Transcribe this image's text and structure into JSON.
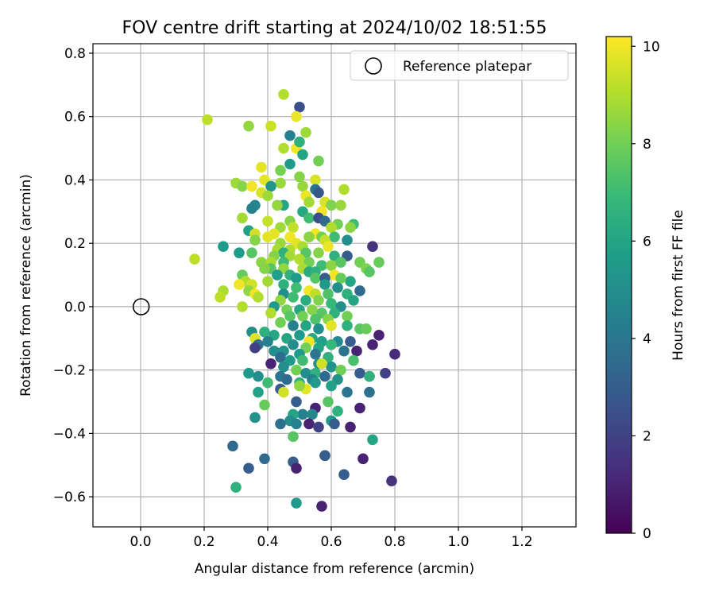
{
  "chart_data": {
    "type": "scatter",
    "title": "FOV centre drift starting at 2024/10/02 18:51:55",
    "xlabel": "Angular distance from reference (arcmin)",
    "ylabel": "Rotation from reference (arcmin)",
    "xlim": [
      -0.15,
      1.37
    ],
    "ylim": [
      -0.695,
      0.83
    ],
    "xticks": [
      0.0,
      0.2,
      0.4,
      0.6,
      0.8,
      1.0,
      1.2
    ],
    "xtick_labels": [
      "0.0",
      "0.2",
      "0.4",
      "0.6",
      "0.8",
      "1.0",
      "1.2"
    ],
    "yticks": [
      -0.6,
      -0.4,
      -0.2,
      0.0,
      0.2,
      0.4,
      0.6,
      0.8
    ],
    "ytick_labels": [
      "−0.6",
      "−0.4",
      "−0.2",
      "0.0",
      "0.2",
      "0.4",
      "0.6",
      "0.8"
    ],
    "grid": true,
    "legend": {
      "position": "top-right",
      "entries": [
        "Reference platepar"
      ]
    },
    "reference_point": {
      "x": 0.0,
      "y": 0.0
    },
    "colorbar": {
      "label": "Hours from first FF file",
      "min": 0,
      "max": 10.2,
      "ticks": [
        0,
        2,
        4,
        6,
        8,
        10
      ],
      "tick_labels": [
        "0",
        "2",
        "4",
        "6",
        "8",
        "10"
      ],
      "colormap": "viridis",
      "stops": [
        "#440154",
        "#482878",
        "#3e4989",
        "#31688e",
        "#26828e",
        "#1f9e89",
        "#35b779",
        "#6ece58",
        "#b5de2b",
        "#fde725"
      ]
    },
    "points": [
      [
        0.21,
        0.59,
        9.2
      ],
      [
        0.45,
        0.67,
        9.0
      ],
      [
        0.5,
        0.63,
        2.5
      ],
      [
        0.34,
        0.57,
        8.5
      ],
      [
        0.41,
        0.57,
        9.4
      ],
      [
        0.49,
        0.6,
        9.9
      ],
      [
        0.52,
        0.55,
        8.7
      ],
      [
        0.47,
        0.54,
        4.5
      ],
      [
        0.45,
        0.5,
        9.0
      ],
      [
        0.49,
        0.5,
        10.0
      ],
      [
        0.5,
        0.52,
        6.5
      ],
      [
        0.51,
        0.48,
        6.0
      ],
      [
        0.56,
        0.46,
        8.0
      ],
      [
        0.47,
        0.45,
        5.5
      ],
      [
        0.38,
        0.44,
        9.8
      ],
      [
        0.44,
        0.43,
        8.1
      ],
      [
        0.5,
        0.41,
        8.3
      ],
      [
        0.55,
        0.4,
        9.6
      ],
      [
        0.39,
        0.4,
        9.8
      ],
      [
        0.3,
        0.39,
        8.7
      ],
      [
        0.32,
        0.38,
        8.3
      ],
      [
        0.35,
        0.38,
        10.0
      ],
      [
        0.44,
        0.39,
        8.6
      ],
      [
        0.41,
        0.38,
        5.4
      ],
      [
        0.51,
        0.38,
        8.6
      ],
      [
        0.55,
        0.37,
        4.0
      ],
      [
        0.56,
        0.36,
        2.8
      ],
      [
        0.64,
        0.37,
        9.0
      ],
      [
        0.38,
        0.36,
        9.6
      ],
      [
        0.4,
        0.35,
        8.7
      ],
      [
        0.52,
        0.35,
        9.9
      ],
      [
        0.53,
        0.33,
        8.8
      ],
      [
        0.58,
        0.33,
        9.6
      ],
      [
        0.6,
        0.32,
        8.2
      ],
      [
        0.63,
        0.32,
        8.6
      ],
      [
        0.45,
        0.32,
        6.0
      ],
      [
        0.43,
        0.32,
        8.5
      ],
      [
        0.36,
        0.32,
        4.8
      ],
      [
        0.35,
        0.31,
        4.5
      ],
      [
        0.51,
        0.3,
        6.1
      ],
      [
        0.57,
        0.3,
        10.0
      ],
      [
        0.32,
        0.28,
        8.8
      ],
      [
        0.4,
        0.27,
        9.3
      ],
      [
        0.47,
        0.27,
        8.3
      ],
      [
        0.53,
        0.28,
        7.0
      ],
      [
        0.56,
        0.28,
        2.5
      ],
      [
        0.58,
        0.27,
        3.5
      ],
      [
        0.62,
        0.26,
        8.0
      ],
      [
        0.67,
        0.26,
        7.0
      ],
      [
        0.6,
        0.25,
        9.0
      ],
      [
        0.66,
        0.25,
        8.4
      ],
      [
        0.48,
        0.25,
        9.3
      ],
      [
        0.44,
        0.25,
        8.7
      ],
      [
        0.34,
        0.24,
        5.8
      ],
      [
        0.36,
        0.23,
        9.5
      ],
      [
        0.55,
        0.23,
        10.0
      ],
      [
        0.42,
        0.23,
        9.8
      ],
      [
        0.47,
        0.22,
        10.0
      ],
      [
        0.53,
        0.22,
        8.4
      ],
      [
        0.57,
        0.22,
        8.0
      ],
      [
        0.61,
        0.22,
        7.0
      ],
      [
        0.58,
        0.21,
        9.3
      ],
      [
        0.65,
        0.21,
        5.0
      ],
      [
        0.36,
        0.21,
        8.3
      ],
      [
        0.4,
        0.22,
        9.8
      ],
      [
        0.44,
        0.2,
        8.6
      ],
      [
        0.49,
        0.2,
        9.8
      ],
      [
        0.26,
        0.19,
        5.5
      ],
      [
        0.51,
        0.19,
        8.9
      ],
      [
        0.59,
        0.19,
        9.9
      ],
      [
        0.73,
        0.19,
        1.5
      ],
      [
        0.43,
        0.18,
        8.9
      ],
      [
        0.47,
        0.18,
        9.0
      ],
      [
        0.31,
        0.17,
        5.5
      ],
      [
        0.35,
        0.17,
        7.5
      ],
      [
        0.45,
        0.17,
        6.5
      ],
      [
        0.52,
        0.17,
        7.5
      ],
      [
        0.56,
        0.17,
        8.3
      ],
      [
        0.61,
        0.16,
        6.5
      ],
      [
        0.65,
        0.16,
        3.0
      ],
      [
        0.42,
        0.16,
        8.3
      ],
      [
        0.17,
        0.15,
        9.2
      ],
      [
        0.47,
        0.16,
        8.8
      ],
      [
        0.5,
        0.15,
        9.0
      ],
      [
        0.38,
        0.14,
        8.4
      ],
      [
        0.41,
        0.14,
        8.9
      ],
      [
        0.45,
        0.14,
        7.0
      ],
      [
        0.53,
        0.14,
        8.0
      ],
      [
        0.57,
        0.13,
        7.0
      ],
      [
        0.6,
        0.13,
        8.4
      ],
      [
        0.63,
        0.14,
        7.5
      ],
      [
        0.69,
        0.14,
        8.0
      ],
      [
        0.75,
        0.14,
        7.8
      ],
      [
        0.71,
        0.12,
        8.2
      ],
      [
        0.72,
        0.11,
        7.5
      ],
      [
        0.45,
        0.12,
        8.5
      ],
      [
        0.41,
        0.12,
        7.5
      ],
      [
        0.39,
        0.12,
        8.3
      ],
      [
        0.51,
        0.12,
        8.9
      ],
      [
        0.53,
        0.11,
        6.2
      ],
      [
        0.55,
        0.11,
        6.5
      ],
      [
        0.61,
        0.1,
        10.0
      ],
      [
        0.32,
        0.1,
        7.8
      ],
      [
        0.47,
        0.1,
        6.5
      ],
      [
        0.43,
        0.1,
        5.7
      ],
      [
        0.49,
        0.09,
        5.5
      ],
      [
        0.55,
        0.09,
        7.5
      ],
      [
        0.58,
        0.09,
        3.0
      ],
      [
        0.66,
        0.08,
        6.0
      ],
      [
        0.63,
        0.09,
        7.8
      ],
      [
        0.4,
        0.08,
        8.8
      ],
      [
        0.33,
        0.08,
        9.0
      ],
      [
        0.35,
        0.07,
        9.5
      ],
      [
        0.31,
        0.07,
        10.0
      ],
      [
        0.45,
        0.07,
        6.5
      ],
      [
        0.49,
        0.06,
        7.0
      ],
      [
        0.58,
        0.07,
        5.5
      ],
      [
        0.62,
        0.06,
        5.0
      ],
      [
        0.69,
        0.05,
        3.5
      ],
      [
        0.26,
        0.05,
        8.9
      ],
      [
        0.34,
        0.05,
        8.5
      ],
      [
        0.36,
        0.04,
        10.0
      ],
      [
        0.45,
        0.04,
        5.0
      ],
      [
        0.53,
        0.05,
        10.0
      ],
      [
        0.55,
        0.04,
        9.2
      ],
      [
        0.59,
        0.04,
        7.3
      ],
      [
        0.65,
        0.04,
        6.5
      ],
      [
        0.67,
        0.02,
        6.0
      ],
      [
        0.25,
        0.03,
        9.2
      ],
      [
        0.37,
        0.03,
        9.0
      ],
      [
        0.44,
        0.02,
        8.5
      ],
      [
        0.48,
        0.03,
        7.0
      ],
      [
        0.52,
        0.02,
        6.3
      ],
      [
        0.56,
        0.02,
        8.2
      ],
      [
        0.6,
        0.01,
        6.8
      ],
      [
        0.63,
        0.0,
        5.0
      ],
      [
        0.32,
        -0.0,
        9.0
      ],
      [
        0.42,
        0.0,
        5.5
      ],
      [
        0.46,
        -0.01,
        8.0
      ],
      [
        0.5,
        -0.01,
        6.0
      ],
      [
        0.54,
        -0.01,
        8.3
      ],
      [
        0.57,
        -0.02,
        7.5
      ],
      [
        0.61,
        -0.02,
        6.5
      ],
      [
        0.65,
        -0.03,
        8.0
      ],
      [
        0.41,
        -0.02,
        9.0
      ],
      [
        0.47,
        -0.03,
        7.5
      ],
      [
        0.51,
        -0.03,
        8.0
      ],
      [
        0.55,
        -0.04,
        7.3
      ],
      [
        0.59,
        -0.04,
        8.3
      ],
      [
        0.44,
        -0.05,
        8.0
      ],
      [
        0.48,
        -0.06,
        4.5
      ],
      [
        0.52,
        -0.06,
        6.0
      ],
      [
        0.56,
        -0.07,
        5.0
      ],
      [
        0.6,
        -0.06,
        9.8
      ],
      [
        0.65,
        -0.06,
        6.5
      ],
      [
        0.69,
        -0.07,
        7.5
      ],
      [
        0.71,
        -0.07,
        7.8
      ],
      [
        0.75,
        -0.09,
        1.0
      ],
      [
        0.35,
        -0.08,
        5.0
      ],
      [
        0.39,
        -0.08,
        6.5
      ],
      [
        0.42,
        -0.09,
        6.0
      ],
      [
        0.46,
        -0.1,
        6.0
      ],
      [
        0.5,
        -0.09,
        5.5
      ],
      [
        0.54,
        -0.1,
        6.2
      ],
      [
        0.57,
        -0.11,
        5.7
      ],
      [
        0.62,
        -0.11,
        4.8
      ],
      [
        0.66,
        -0.11,
        3.0
      ],
      [
        0.73,
        -0.12,
        1.0
      ],
      [
        0.53,
        -0.11,
        10.0
      ],
      [
        0.36,
        -0.1,
        9.7
      ],
      [
        0.37,
        -0.12,
        3.8
      ],
      [
        0.4,
        -0.11,
        4.5
      ],
      [
        0.48,
        -0.12,
        5.0
      ],
      [
        0.52,
        -0.13,
        8.0
      ],
      [
        0.56,
        -0.13,
        6.0
      ],
      [
        0.6,
        -0.12,
        6.8
      ],
      [
        0.64,
        -0.14,
        4.0
      ],
      [
        0.68,
        -0.14,
        1.0
      ],
      [
        0.36,
        -0.13,
        2.0
      ],
      [
        0.42,
        -0.14,
        5.0
      ],
      [
        0.45,
        -0.14,
        5.2
      ],
      [
        0.5,
        -0.15,
        5.5
      ],
      [
        0.55,
        -0.15,
        4.0
      ],
      [
        0.59,
        -0.16,
        6.5
      ],
      [
        0.8,
        -0.15,
        1.2
      ],
      [
        0.44,
        -0.16,
        3.5
      ],
      [
        0.47,
        -0.17,
        5.5
      ],
      [
        0.51,
        -0.17,
        7.0
      ],
      [
        0.56,
        -0.18,
        5.0
      ],
      [
        0.6,
        -0.19,
        5.2
      ],
      [
        0.57,
        -0.18,
        9.5
      ],
      [
        0.67,
        -0.17,
        7.2
      ],
      [
        0.63,
        -0.2,
        8.0
      ],
      [
        0.41,
        -0.18,
        1.0
      ],
      [
        0.45,
        -0.19,
        5.0
      ],
      [
        0.49,
        -0.2,
        8.0
      ],
      [
        0.52,
        -0.21,
        5.0
      ],
      [
        0.55,
        -0.21,
        6.5
      ],
      [
        0.58,
        -0.22,
        3.5
      ],
      [
        0.62,
        -0.23,
        5.2
      ],
      [
        0.34,
        -0.21,
        5.5
      ],
      [
        0.37,
        -0.22,
        5.0
      ],
      [
        0.44,
        -0.22,
        4.0
      ],
      [
        0.46,
        -0.23,
        3.5
      ],
      [
        0.54,
        -0.23,
        4.5
      ],
      [
        0.69,
        -0.21,
        3.0
      ],
      [
        0.72,
        -0.22,
        1.5
      ],
      [
        0.77,
        -0.21,
        2.0
      ],
      [
        0.4,
        -0.24,
        7.0
      ],
      [
        0.5,
        -0.24,
        6.5
      ],
      [
        0.55,
        -0.24,
        5.5
      ],
      [
        0.6,
        -0.25,
        5.8
      ],
      [
        0.72,
        -0.22,
        6.5
      ],
      [
        0.44,
        -0.26,
        3.0
      ],
      [
        0.52,
        -0.26,
        9.8
      ],
      [
        0.5,
        -0.25,
        8.5
      ],
      [
        0.37,
        -0.27,
        5.8
      ],
      [
        0.45,
        -0.27,
        9.5
      ],
      [
        0.65,
        -0.27,
        4.0
      ],
      [
        0.72,
        -0.27,
        3.8
      ],
      [
        0.49,
        -0.3,
        3.0
      ],
      [
        0.55,
        -0.32,
        1.0
      ],
      [
        0.59,
        -0.3,
        7.5
      ],
      [
        0.39,
        -0.31,
        7.8
      ],
      [
        0.62,
        -0.33,
        6.5
      ],
      [
        0.69,
        -0.32,
        1.0
      ],
      [
        0.51,
        -0.34,
        4.5
      ],
      [
        0.54,
        -0.34,
        4.8
      ],
      [
        0.48,
        -0.34,
        6.0
      ],
      [
        0.36,
        -0.35,
        5.2
      ],
      [
        0.47,
        -0.36,
        5.0
      ],
      [
        0.6,
        -0.36,
        5.5
      ],
      [
        0.49,
        -0.37,
        4.5
      ],
      [
        0.53,
        -0.37,
        1.0
      ],
      [
        0.44,
        -0.37,
        3.8
      ],
      [
        0.61,
        -0.37,
        3.0
      ],
      [
        0.56,
        -0.38,
        2.0
      ],
      [
        0.66,
        -0.38,
        1.0
      ],
      [
        0.48,
        -0.41,
        7.5
      ],
      [
        0.73,
        -0.42,
        6.0
      ],
      [
        0.29,
        -0.44,
        3.5
      ],
      [
        0.58,
        -0.47,
        4.0
      ],
      [
        0.58,
        -0.47,
        3.0
      ],
      [
        0.48,
        -0.49,
        3.0
      ],
      [
        0.7,
        -0.48,
        1.0
      ],
      [
        0.39,
        -0.48,
        3.5
      ],
      [
        0.34,
        -0.51,
        3.0
      ],
      [
        0.49,
        -0.51,
        1.0
      ],
      [
        0.64,
        -0.53,
        3.0
      ],
      [
        0.79,
        -0.55,
        1.5
      ],
      [
        0.3,
        -0.57,
        6.5
      ],
      [
        0.49,
        -0.62,
        5.5
      ],
      [
        0.57,
        -0.63,
        1.0
      ]
    ]
  }
}
